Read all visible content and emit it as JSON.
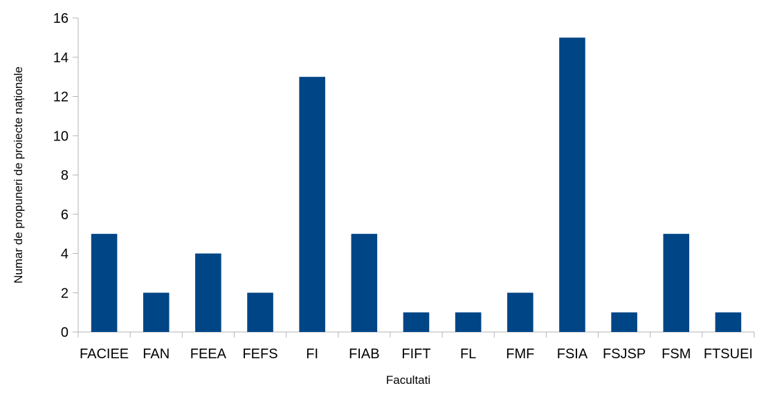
{
  "chart_data": {
    "type": "bar",
    "categories": [
      "FACIEE",
      "FAN",
      "FEEA",
      "FEFS",
      "FI",
      "FIAB",
      "FIFT",
      "FL",
      "FMF",
      "FSIA",
      "FSJSP",
      "FSM",
      "FTSUEI"
    ],
    "values": [
      5,
      2,
      4,
      2,
      13,
      5,
      1,
      1,
      2,
      15,
      1,
      5,
      1
    ],
    "xlabel": "Facultati",
    "ylabel": "Numar de propuneri de proiecte naționale",
    "ylim": [
      0,
      16
    ],
    "yticks": [
      0,
      2,
      4,
      6,
      8,
      10,
      12,
      14,
      16
    ],
    "grid": false,
    "legend": "none",
    "colors": {
      "bar": "#004586",
      "axis": "#b3b3b3",
      "text": "#000000"
    }
  }
}
